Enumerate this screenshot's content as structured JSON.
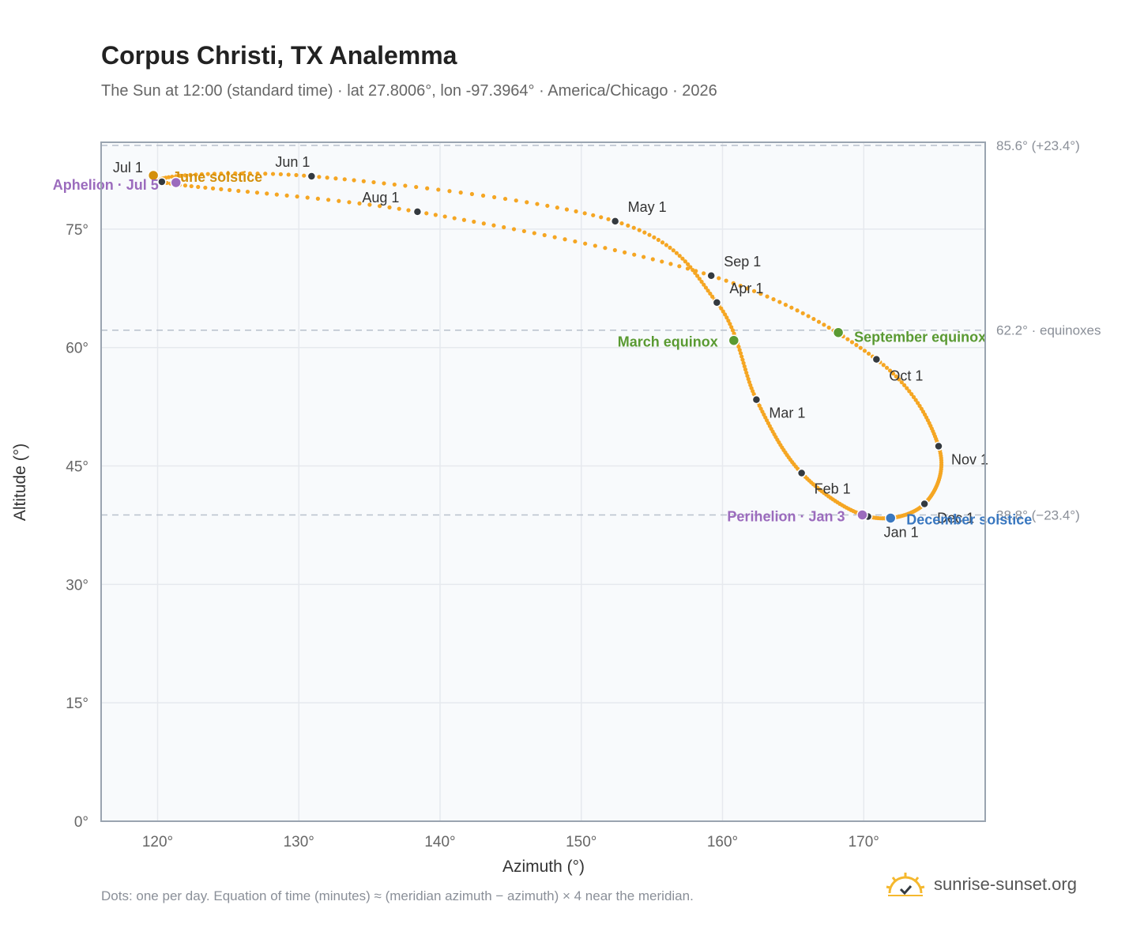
{
  "header": {
    "title": "Corpus Christi, TX Analemma",
    "subtitle": "The Sun at 12:00 (standard time) · lat 27.8006°, lon -97.3964° · America/Chicago · 2026"
  },
  "footer": {
    "note": "Dots: one per day. Equation of time (minutes) ≈ (meridian azimuth − azimuth) × 4 near the meridian.",
    "brand": "sunrise-sunset.org"
  },
  "colors": {
    "path": "#f5a623",
    "month_dot": "#343a40",
    "equinox": "#5a9a32",
    "june_solstice": "#d4900c",
    "december_solstice": "#3a78c0",
    "apsis": "#9b6bbd",
    "ref_line": "#b8c0cc",
    "plot_bg": "#f8fafc",
    "frame": "#9aa4b0",
    "grid": "#e6e9ee"
  },
  "chart_data": {
    "type": "scatter",
    "title": "Corpus Christi, TX Analemma",
    "xlabel": "Azimuth (°)",
    "ylabel": "Altitude (°)",
    "xlim": [
      116,
      178.6
    ],
    "ylim": [
      0,
      86
    ],
    "x_ticks": [
      {
        "value": 120,
        "label": "120°"
      },
      {
        "value": 130,
        "label": "130°"
      },
      {
        "value": 140,
        "label": "140°"
      },
      {
        "value": 150,
        "label": "150°"
      },
      {
        "value": 160,
        "label": "160°"
      },
      {
        "value": 170,
        "label": "170°"
      }
    ],
    "y_ticks": [
      {
        "value": 0,
        "label": "0°"
      },
      {
        "value": 15,
        "label": "15°"
      },
      {
        "value": 30,
        "label": "30°"
      },
      {
        "value": 45,
        "label": "45°"
      },
      {
        "value": 60,
        "label": "60°"
      },
      {
        "value": 75,
        "label": "75°"
      }
    ],
    "grid": true,
    "reference_lines": [
      {
        "y": 85.6,
        "label": "85.6° (+23.4°)"
      },
      {
        "y": 62.2,
        "label": "62.2° · equinoxes"
      },
      {
        "y": 38.8,
        "label": "38.8° (−23.4°)"
      }
    ],
    "months": [
      {
        "label": "Jan 1",
        "az": 170.3,
        "alt": 38.6
      },
      {
        "label": "Feb 1",
        "az": 165.6,
        "alt": 44.1
      },
      {
        "label": "Mar 1",
        "az": 162.4,
        "alt": 53.4
      },
      {
        "label": "Apr 1",
        "az": 159.6,
        "alt": 65.7
      },
      {
        "label": "May 1",
        "az": 152.4,
        "alt": 76.0
      },
      {
        "label": "Jun 1",
        "az": 130.9,
        "alt": 81.7
      },
      {
        "label": "Jul 1",
        "az": 120.3,
        "alt": 81.0
      },
      {
        "label": "Aug 1",
        "az": 138.4,
        "alt": 77.2
      },
      {
        "label": "Sep 1",
        "az": 159.2,
        "alt": 69.1
      },
      {
        "label": "Oct 1",
        "az": 170.9,
        "alt": 58.5
      },
      {
        "label": "Nov 1",
        "az": 175.3,
        "alt": 47.5
      },
      {
        "label": "Dec 1",
        "az": 174.3,
        "alt": 40.2
      }
    ],
    "events": [
      {
        "label": "March equinox",
        "az": 160.8,
        "alt": 60.9,
        "color": "#5a9a32"
      },
      {
        "label": "September equinox",
        "az": 168.2,
        "alt": 61.9,
        "color": "#5a9a32"
      },
      {
        "label": "June solstice",
        "az": 119.7,
        "alt": 81.8,
        "color": "#d4900c"
      },
      {
        "label": "December solstice",
        "az": 171.9,
        "alt": 38.4,
        "color": "#3a78c0"
      },
      {
        "label": "Perihelion · Jan 3",
        "az": 169.9,
        "alt": 38.8,
        "color": "#9b6bbd"
      },
      {
        "label": "Aphelion · Jul 5",
        "az": 121.3,
        "alt": 80.9,
        "color": "#9b6bbd"
      }
    ]
  }
}
